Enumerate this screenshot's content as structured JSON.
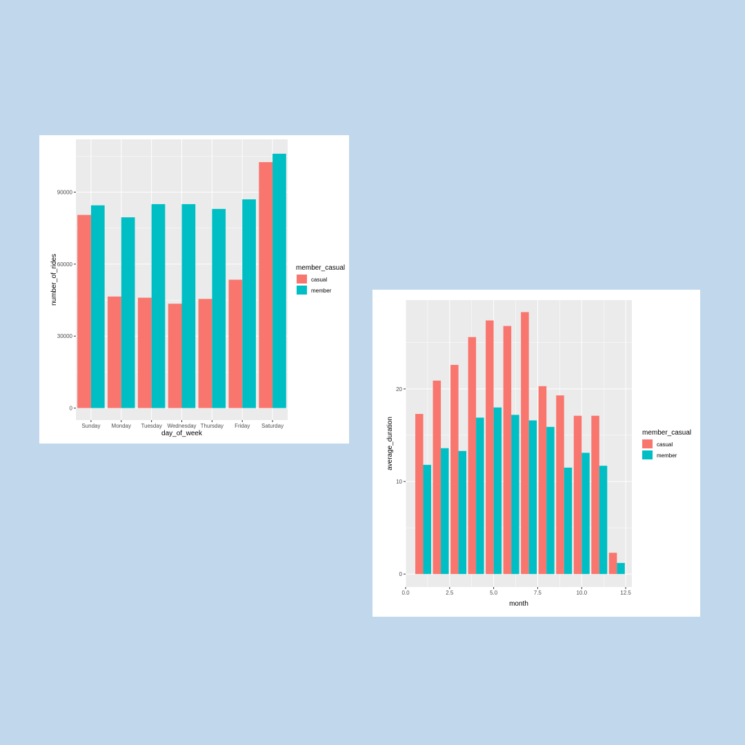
{
  "colors": {
    "page_background": "#c1d8ec",
    "panel_background": "#ffffff",
    "plot_background": "#ebebeb",
    "grid": "#ffffff",
    "casual": "#f8766d",
    "member": "#00bfc4"
  },
  "chart_data": [
    {
      "type": "bar",
      "xlabel": "day_of_week",
      "ylabel": "number_of_rides",
      "categories": [
        "Sunday",
        "Monday",
        "Tuesday",
        "Wednesday",
        "Thursday",
        "Friday",
        "Saturday"
      ],
      "series": [
        {
          "name": "casual",
          "values": [
            80500,
            46500,
            46000,
            43500,
            45500,
            53500,
            102500
          ]
        },
        {
          "name": "member",
          "values": [
            84500,
            79500,
            85000,
            85000,
            83000,
            87000,
            106000
          ]
        }
      ],
      "yticks": [
        0,
        30000,
        60000,
        90000
      ],
      "ytick_labels": [
        "0",
        "30000",
        "60000",
        "90000"
      ],
      "ylim": [
        -5000,
        112000
      ],
      "legend": {
        "title": "member_casual",
        "items": [
          "casual",
          "member"
        ],
        "position": "right"
      },
      "grid": true
    },
    {
      "type": "bar",
      "xlabel": "month",
      "ylabel": "average_duration",
      "x": [
        1,
        2,
        3,
        4,
        5,
        6,
        7,
        8,
        9,
        10,
        11,
        12
      ],
      "series": [
        {
          "name": "casual",
          "values": [
            17.3,
            20.9,
            22.6,
            25.6,
            27.4,
            26.8,
            28.3,
            20.3,
            19.3,
            17.1,
            17.1,
            2.3
          ]
        },
        {
          "name": "member",
          "values": [
            11.8,
            13.6,
            13.3,
            16.9,
            18.0,
            17.2,
            16.6,
            15.9,
            11.5,
            13.1,
            11.7,
            1.2
          ]
        }
      ],
      "xticks": [
        0,
        2.5,
        5,
        7.5,
        10,
        12.5
      ],
      "xtick_labels": [
        "0.0",
        "2.5",
        "5.0",
        "7.5",
        "10.0",
        "12.5"
      ],
      "yticks": [
        0,
        10,
        20
      ],
      "ytick_labels": [
        "0",
        "10",
        "20"
      ],
      "xlim": [
        0,
        12.85
      ],
      "ylim": [
        -1.4,
        29.6
      ],
      "legend": {
        "title": "member_casual",
        "items": [
          "casual",
          "member"
        ],
        "position": "right"
      },
      "grid": true
    }
  ]
}
